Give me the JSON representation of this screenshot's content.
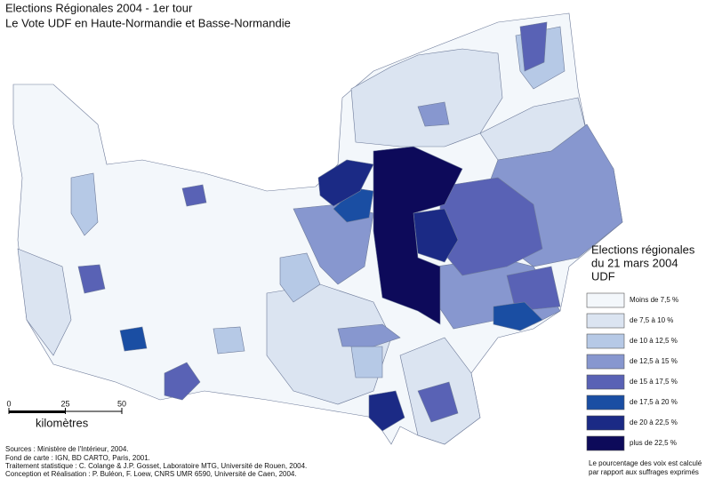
{
  "title": [
    "Elections Régionales  2004 - 1er tour",
    "Le Vote UDF en Haute-Normandie et Basse-Normandie"
  ],
  "legend": {
    "title": [
      "Elections régionales",
      "du 21 mars 2004",
      "UDF"
    ],
    "classes": [
      {
        "label": "Moins de 7,5 %",
        "color": "#f3f7fb"
      },
      {
        "label": "de 7,5 à 10 %",
        "color": "#dbe4f1"
      },
      {
        "label": "de 10 à 12,5 %",
        "color": "#b6c9e6"
      },
      {
        "label": "de 12,5 à 15 %",
        "color": "#8797cf"
      },
      {
        "label": "de 15 à 17,5 %",
        "color": "#5962b5"
      },
      {
        "label": "de 17,5 à 20 %",
        "color": "#1a4ea3"
      },
      {
        "label": "de 20 à 22,5 %",
        "color": "#1b2a85"
      },
      {
        "label": "plus de 22,5 %",
        "color": "#0d0a5a"
      }
    ]
  },
  "scale": {
    "ticks": [
      0,
      25,
      50
    ],
    "label": "kilomètres"
  },
  "sources": [
    "Sources : Ministère de l'Intérieur, 2004.",
    "Fond de carte : IGN, BD CARTO, Paris, 2001.",
    "Traitement statistique : C. Colange & J.P. Gosset, Laboratoire MTG, Université de Rouen, 2004.",
    "Conception et Réalisation : P. Buléon, F. Loew, CNRS UMR 6590, Université de Caen, 2004."
  ],
  "note": [
    "Le pourcentage des voix est calculé",
    "par rapport aux suffrages exprimés"
  ]
}
